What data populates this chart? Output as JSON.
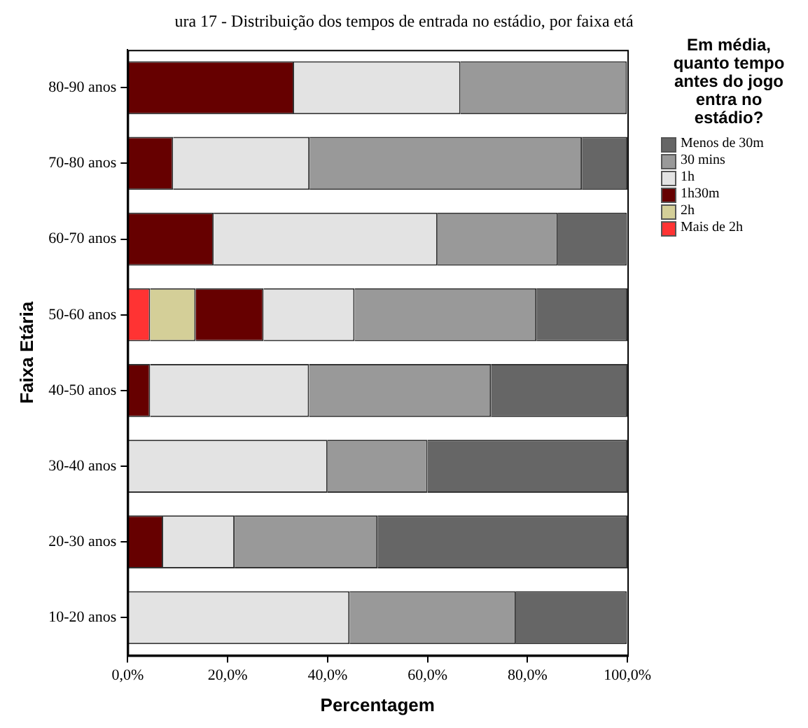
{
  "chart_data": {
    "type": "bar",
    "orientation": "horizontal",
    "stacked": true,
    "title": "ura 17 - Distribuição dos tempos de entrada no estádio, por faixa etá",
    "xlabel": "Percentagem",
    "ylabel": "Faixa Etária",
    "legend_title": "Em média, quanto tempo antes do jogo entra no estádio?",
    "legend": "right",
    "categories": [
      "80-90 anos",
      "70-80 anos",
      "60-70 anos",
      "50-60 anos",
      "40-50 anos",
      "30-40 anos",
      "20-30 anos",
      "10-20 anos"
    ],
    "series": [
      {
        "name": "Mais de 2h",
        "color": "#ff3333",
        "values": [
          0,
          0,
          0,
          4.5,
          0,
          0,
          0,
          0
        ]
      },
      {
        "name": "2h",
        "color": "#d4cf98",
        "values": [
          0,
          0,
          0,
          9.1,
          0,
          0,
          0,
          0
        ]
      },
      {
        "name": "1h30m",
        "color": "#660000",
        "values": [
          33.3,
          9.1,
          17.2,
          13.6,
          4.5,
          0,
          7.1,
          0
        ]
      },
      {
        "name": "1h",
        "color": "#e3e3e3",
        "values": [
          33.3,
          27.3,
          44.8,
          18.2,
          31.8,
          40,
          14.3,
          44.4
        ]
      },
      {
        "name": "30 mins",
        "color": "#999999",
        "values": [
          33.3,
          54.5,
          24.1,
          36.4,
          36.4,
          20,
          28.6,
          33.3
        ]
      },
      {
        "name": "Menos de 30m",
        "color": "#666666",
        "values": [
          0,
          9.1,
          13.8,
          18.2,
          27.3,
          40,
          50,
          22.2
        ]
      }
    ],
    "xlim": [
      0,
      100
    ],
    "xticks": [
      {
        "value": 0,
        "label": "0,0%"
      },
      {
        "value": 20,
        "label": "20,0%"
      },
      {
        "value": 40,
        "label": "40,0%"
      },
      {
        "value": 60,
        "label": "60,0%"
      },
      {
        "value": 80,
        "label": "80,0%"
      },
      {
        "value": 100,
        "label": "100,0%"
      }
    ],
    "grid": false
  }
}
